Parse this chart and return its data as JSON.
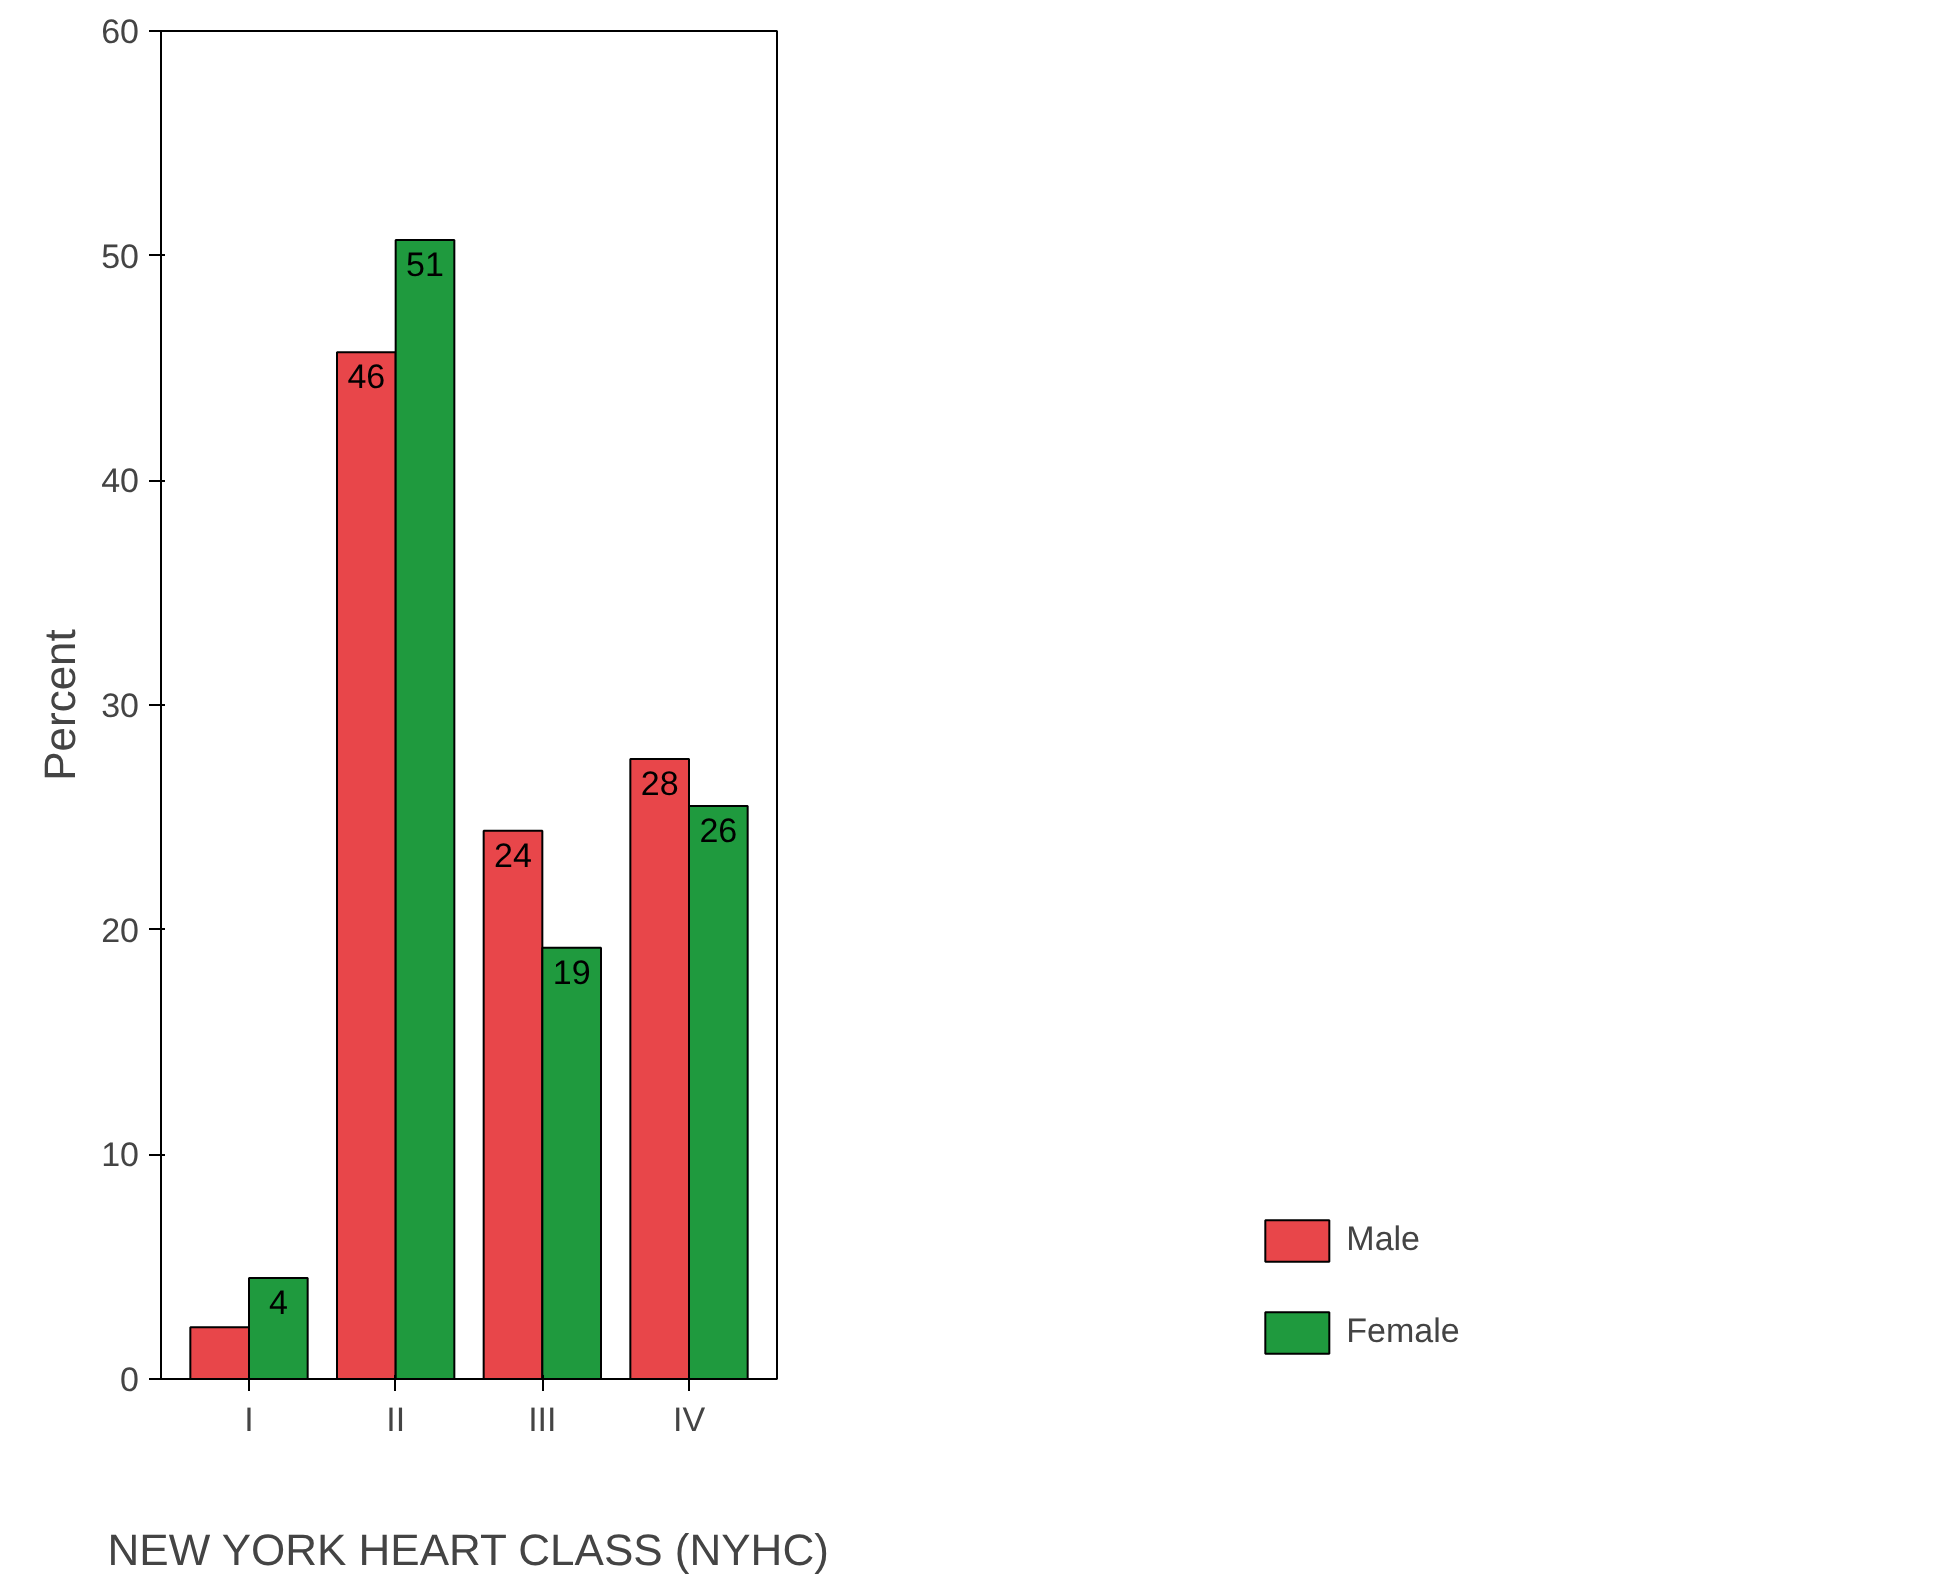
{
  "chart_data": {
    "type": "bar",
    "xlabel": "NEW YORK HEART CLASS (NYHC)",
    "ylabel": "Percent",
    "categories": [
      "I",
      "II",
      "III",
      "IV"
    ],
    "series": [
      {
        "name": "Male",
        "color": "#e8464a",
        "values": [
          2.3,
          45.7,
          24.4,
          27.6
        ],
        "value_labels": [
          null,
          "46",
          "24",
          "28"
        ]
      },
      {
        "name": "Female",
        "color": "#1f9a3e",
        "values": [
          4.5,
          50.7,
          19.2,
          25.5
        ],
        "value_labels": [
          "4",
          "51",
          "19",
          "26"
        ]
      }
    ],
    "ylim": [
      0,
      60
    ],
    "yticks": [
      0,
      10,
      20,
      30,
      40,
      50,
      60
    ],
    "grid": false,
    "legend": "bottom right"
  }
}
